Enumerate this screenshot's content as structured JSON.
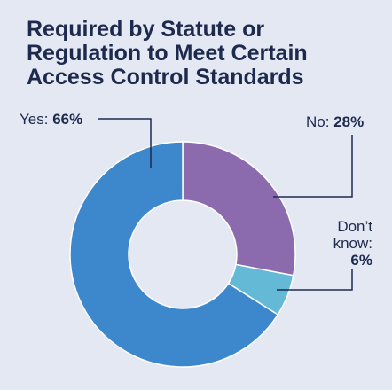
{
  "title": {
    "line1": "Required by Statute or",
    "line2": "Regulation to Meet Certain",
    "line3": "Access Control Standards"
  },
  "colors": {
    "background": "#e3e8f2",
    "text": "#1d2a4e",
    "yes": "#3d87cc",
    "no": "#8b6aae",
    "dont_know": "#63b9d6"
  },
  "chart_data": {
    "type": "pie",
    "donut": true,
    "title": "Required by Statute or Regulation to Meet Certain Access Control Standards",
    "slices": [
      {
        "key": "no",
        "name": "No",
        "value": 28,
        "value_label": "28%",
        "color": "#8b6aae"
      },
      {
        "key": "dk",
        "name": "Don’t know:",
        "name_line1": "Don’t",
        "name_line2": "know:",
        "value": 6,
        "value_label": "6%",
        "color": "#63b9d6"
      },
      {
        "key": "yes",
        "name": "Yes",
        "value": 66,
        "value_label": "66%",
        "color": "#3d87cc"
      }
    ],
    "legend": "none"
  }
}
